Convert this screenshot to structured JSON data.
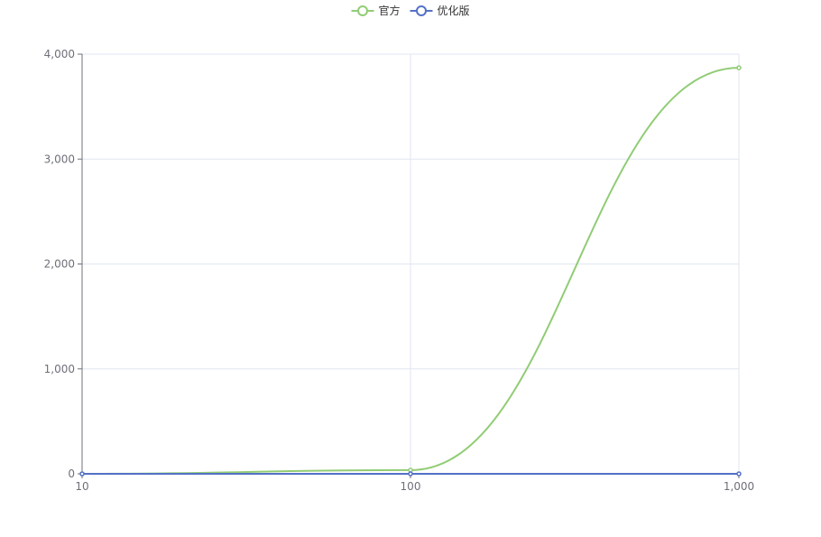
{
  "chart_data": {
    "type": "line",
    "x_scale": "log",
    "x": [
      10,
      100,
      1000
    ],
    "x_ticks": [
      10,
      100,
      1000
    ],
    "x_tick_labels": [
      "10",
      "100",
      "1,000"
    ],
    "ylim": [
      0,
      4000
    ],
    "y_ticks": [
      0,
      1000,
      2000,
      3000,
      4000
    ],
    "y_tick_labels": [
      "0",
      "1,000",
      "2,000",
      "3,000",
      "4,000"
    ],
    "grid": true,
    "smooth": true,
    "legend_position": "top-center",
    "series": [
      {
        "name": "官方",
        "values": [
          0,
          35,
          3870
        ],
        "color": "#91cc75"
      },
      {
        "name": "优化版",
        "values": [
          0,
          0,
          0
        ],
        "color": "#5470c6"
      }
    ]
  }
}
